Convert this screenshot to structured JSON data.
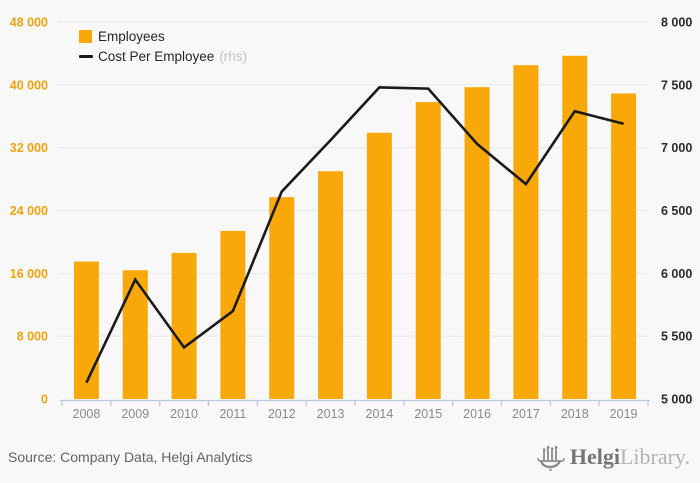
{
  "colors": {
    "background": "#F8F8F8",
    "bar": "#F9A80A",
    "line": "#1A1A1A",
    "left_axis_label": "#F2A20D",
    "right_axis_label": "#2B2B2B",
    "year_label": "#8A8A8A",
    "gridline": "#E9E9E9",
    "axis_line": "#BDC6DB",
    "legend_text": "#262626",
    "legend_suffix": "#C4C4C4",
    "source_text": "#636363",
    "logo_dark": "#757575",
    "logo_light": "#B3B3B3",
    "logo_icon": "#8A8A8A"
  },
  "legend": {
    "items": [
      {
        "label": "Employees",
        "marker": "square"
      },
      {
        "label": "Cost Per Employee",
        "suffix": "(rhs)",
        "marker": "line"
      }
    ]
  },
  "chart_data": {
    "type": "bar",
    "categories": [
      "2008",
      "2009",
      "2010",
      "2011",
      "2012",
      "2013",
      "2014",
      "2015",
      "2016",
      "2017",
      "2018",
      "2019"
    ],
    "series": [
      {
        "name": "Employees",
        "type": "bar",
        "axis": "left",
        "values": [
          17500,
          16400,
          18600,
          21400,
          25700,
          29000,
          33900,
          37800,
          39700,
          42500,
          43700,
          38900
        ]
      },
      {
        "name": "Cost Per Employee (rhs)",
        "type": "line",
        "axis": "right",
        "values": [
          5130,
          5950,
          5410,
          5700,
          6650,
          7060,
          7480,
          7470,
          7030,
          6710,
          7290,
          7190
        ]
      }
    ],
    "left_axis": {
      "min": 0,
      "max": 48000,
      "ticks": [
        "0",
        "8 000",
        "16 000",
        "24 000",
        "32 000",
        "40 000",
        "48 000"
      ],
      "tick_values": [
        0,
        8000,
        16000,
        24000,
        32000,
        40000,
        48000
      ]
    },
    "right_axis": {
      "min": 5000,
      "max": 8000,
      "ticks": [
        "5 000",
        "5 500",
        "6 000",
        "6 500",
        "7 000",
        "7 500",
        "8 000"
      ],
      "tick_values": [
        5000,
        5500,
        6000,
        6500,
        7000,
        7500,
        8000
      ]
    },
    "grid": true,
    "legend_position": "top-left"
  },
  "footer": {
    "source": "Source: Company Data, Helgi Analytics",
    "logo": {
      "brand_bold": "Helgi",
      "brand_light": "Library."
    }
  }
}
